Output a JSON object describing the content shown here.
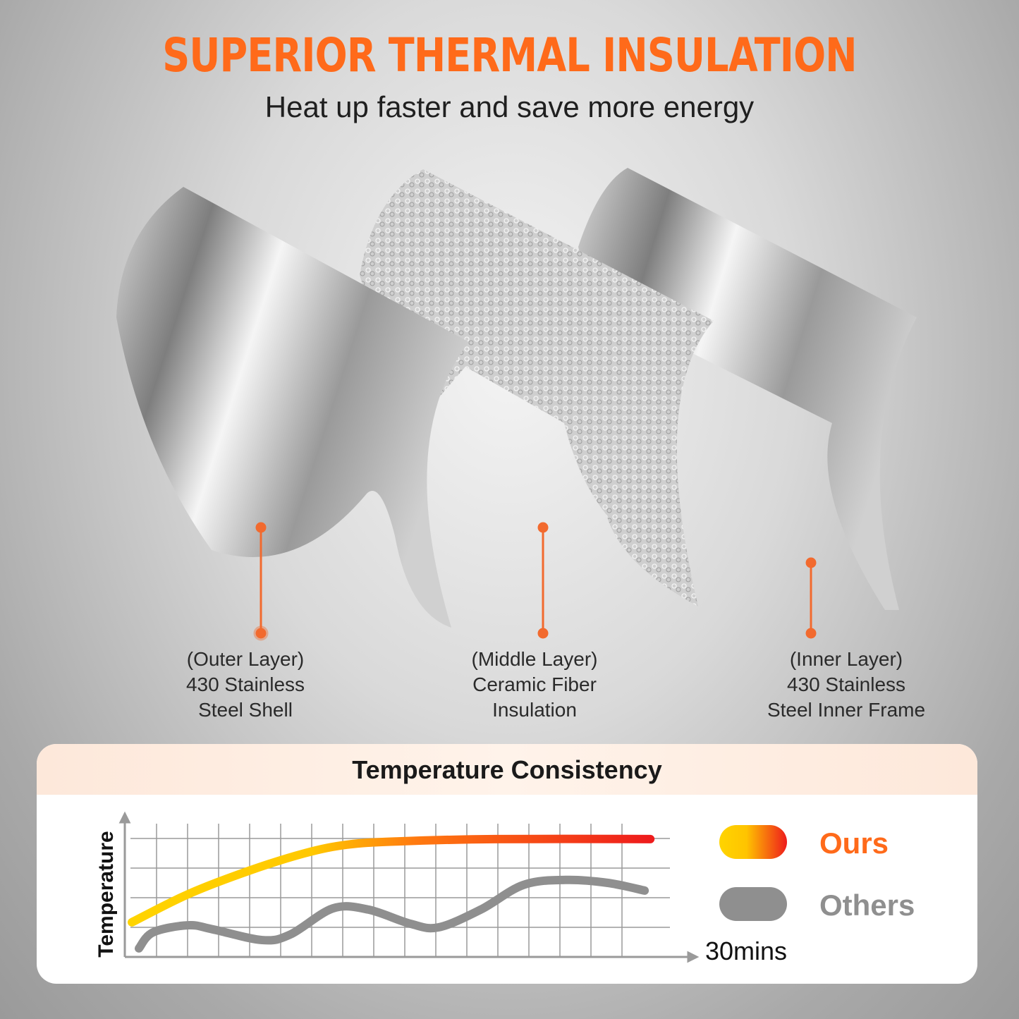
{
  "header": {
    "title": "SUPERIOR THERMAL INSULATION",
    "subtitle": "Heat up faster and save more energy"
  },
  "colors": {
    "accent": "#ff6a1a",
    "marker": "#f26a2e",
    "ours_start": "#ffd400",
    "ours_end": "#ee1c1c",
    "others": "#8f8f8f"
  },
  "layers": [
    {
      "line1": "(Outer Layer)",
      "line2": "430 Stainless",
      "line3": "Steel Shell"
    },
    {
      "line1": "(Middle Layer)",
      "line2": "Ceramic Fiber",
      "line3": "Insulation"
    },
    {
      "line1": "(Inner Layer)",
      "line2": "430 Stainless",
      "line3": "Steel Inner Frame"
    }
  ],
  "chart_data": {
    "type": "line",
    "title": "Temperature Consistency",
    "ylabel": "Temperature",
    "xlabel": "30mins",
    "xlim": [
      0,
      30
    ],
    "ylim": [
      0,
      4.7
    ],
    "grid": true,
    "legend": "right",
    "series": [
      {
        "name": "Ours",
        "x": [
          0.37,
          3.33,
          6.48,
          9.44,
          11.67,
          14.26,
          19.44,
          27.6
        ],
        "y": [
          1.17,
          2.12,
          2.9,
          3.5,
          3.79,
          3.9,
          3.98,
          3.98
        ]
      },
      {
        "name": "Others",
        "x": [
          0.74,
          1.48,
          3.33,
          4.63,
          7.22,
          8.7,
          10.93,
          12.78,
          15.0,
          16.48,
          18.7,
          20.93,
          23.15,
          25.37,
          27.3
        ],
        "y": [
          0.29,
          0.83,
          1.07,
          0.93,
          0.57,
          0.76,
          1.64,
          1.6,
          1.12,
          1.0,
          1.6,
          2.43,
          2.6,
          2.5,
          2.24
        ]
      }
    ]
  }
}
